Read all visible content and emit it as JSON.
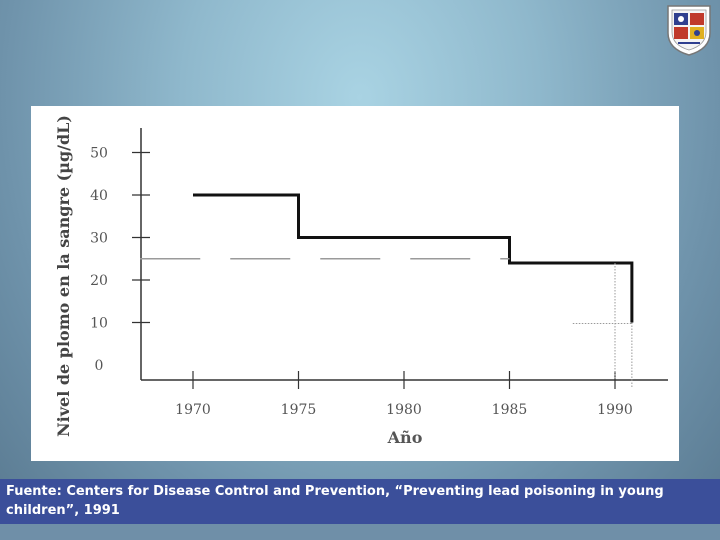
{
  "logo": {
    "name": "university-seal-icon"
  },
  "footer": {
    "source": "Fuente: Centers for Disease Control and Prevention, “Preventing lead poisoning in young children”, 1991"
  },
  "chart_data": {
    "type": "line",
    "title": "",
    "xlabel": "Año",
    "ylabel": "Nivel de plomo en la sangre (µg/dL)",
    "xlim": [
      1967.5,
      1992.5
    ],
    "ylim": [
      0,
      55
    ],
    "x_ticks": [
      1970,
      1975,
      1980,
      1985,
      1990
    ],
    "y_ticks": [
      0,
      10,
      20,
      30,
      40,
      50
    ],
    "grid": false,
    "series": [
      {
        "style": "solid-step",
        "x": [
          1970,
          1975,
          1975,
          1985,
          1985,
          1990.8,
          1990.8
        ],
        "y": [
          40,
          40,
          30,
          30,
          24,
          24,
          10
        ]
      },
      {
        "style": "dashed",
        "x": [
          1967.5,
          1985
        ],
        "y": [
          25,
          25
        ]
      },
      {
        "style": "dotted-guide",
        "x": [
          1990,
          1990,
          1988,
          1990.8,
          1990.8
        ],
        "y": [
          24,
          0,
          10,
          10,
          0
        ]
      }
    ]
  }
}
